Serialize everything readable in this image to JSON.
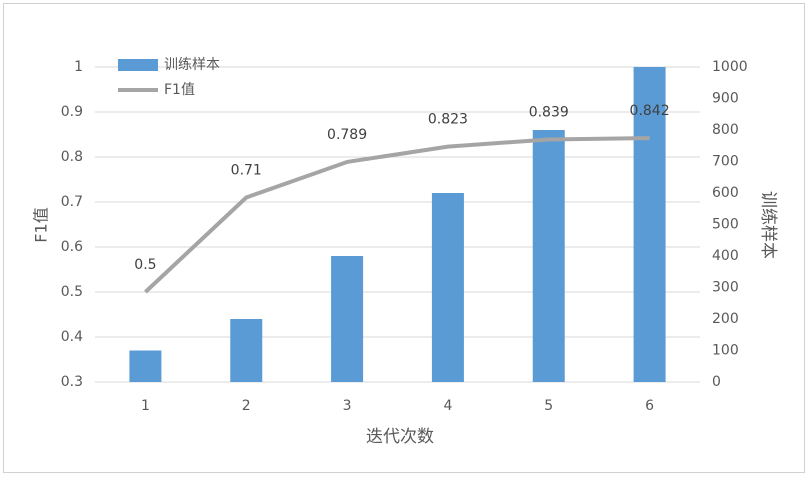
{
  "chart_data": {
    "type": "bar_line",
    "categories": [
      "1",
      "2",
      "3",
      "4",
      "5",
      "6"
    ],
    "series": [
      {
        "name": "训练样本",
        "color": "#5b9bd5",
        "values": [
          100,
          200,
          400,
          600,
          800,
          1000
        ],
        "axis": "y2",
        "type": "bar"
      },
      {
        "name": "F1值",
        "color": "#a5a5a5",
        "values": [
          0.5,
          0.71,
          0.789,
          0.823,
          0.839,
          0.842
        ],
        "axis": "y",
        "type": "line"
      }
    ],
    "xlabel": "迭代次数",
    "ylabel": "F1值",
    "y2label": "训练样本",
    "ylim": [
      0.3,
      1
    ],
    "yticks": [
      0.3,
      0.4,
      0.5,
      0.6,
      0.7,
      0.8,
      0.9,
      1
    ],
    "y2lim": [
      0,
      1000
    ],
    "y2ticks": [
      0,
      100,
      200,
      300,
      400,
      500,
      600,
      700,
      800,
      900,
      1000
    ],
    "grid": true,
    "legend": "upper left"
  }
}
